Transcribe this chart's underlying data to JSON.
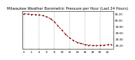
{
  "title": "Milwaukee Weather Barometric Pressure per Hour (Last 24 Hours)",
  "hours": [
    0,
    1,
    2,
    3,
    4,
    5,
    6,
    7,
    8,
    9,
    10,
    11,
    12,
    13,
    14,
    15,
    16,
    17,
    18,
    19,
    20,
    21,
    22,
    23
  ],
  "pressure": [
    30.21,
    30.2,
    30.19,
    30.18,
    30.17,
    30.15,
    30.11,
    30.05,
    29.95,
    29.82,
    29.68,
    29.55,
    29.44,
    29.36,
    29.3,
    29.26,
    29.23,
    29.21,
    29.2,
    29.19,
    29.2,
    29.21,
    29.22,
    29.23
  ],
  "line_color": "#dd0000",
  "marker_color": "#000000",
  "bg_color": "#ffffff",
  "grid_color": "#999999",
  "ylim": [
    29.1,
    30.3
  ],
  "yticks": [
    29.2,
    29.4,
    29.6,
    29.8,
    30.0,
    30.2
  ],
  "xticks": [
    0,
    2,
    4,
    6,
    8,
    10,
    12,
    14,
    16,
    18,
    20,
    22
  ],
  "grid_x_positions": [
    0,
    4,
    8,
    12,
    16,
    20
  ],
  "title_fontsize": 3.8,
  "tick_fontsize": 3.0,
  "line_width": 0.7,
  "marker_size": 1.2,
  "marker_style": "+"
}
